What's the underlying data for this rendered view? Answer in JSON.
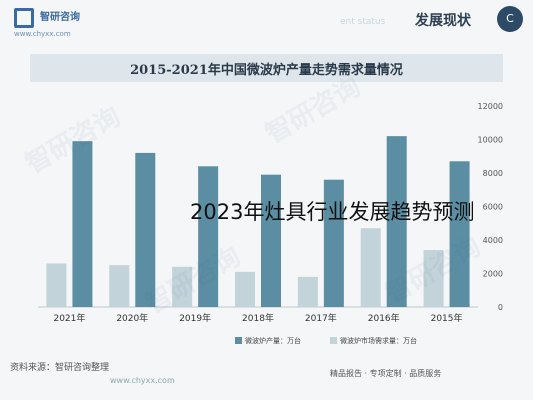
{
  "header": {
    "logo_text": "智研咨询",
    "logo_url": "www.chyxx.com",
    "section_en": "ent status",
    "section_cn": "发展现状",
    "badge": "C"
  },
  "chart_data": {
    "type": "bar",
    "title": "2015-2021年中国微波炉产量走势需求量情况",
    "categories": [
      "2021年",
      "2020年",
      "2019年",
      "2018年",
      "2017年",
      "2016年",
      "2015年"
    ],
    "ylim": [
      0,
      12000
    ],
    "yticks": [
      "0",
      "2000",
      "4000",
      "6000",
      "8000",
      "10000",
      "12000"
    ],
    "series": [
      {
        "name": "微波炉市场需求量：万台",
        "color": "#c3d3da",
        "values": [
          2600,
          2500,
          2400,
          2100,
          1800,
          4700,
          3400
        ]
      },
      {
        "name": "微波炉产量：万台",
        "color": "#5c8ea3",
        "values": [
          9900,
          9200,
          8400,
          7900,
          7600,
          10200,
          8700
        ]
      }
    ],
    "legend_position": "bottom"
  },
  "overlay": {
    "text": "2023年灶具行业发展趋势预测"
  },
  "footer": {
    "source": "资料来源：智研咨询整理",
    "url": "www.chyxx.com",
    "tagline": "精品报告 · 专项定制 · 品质服务"
  }
}
